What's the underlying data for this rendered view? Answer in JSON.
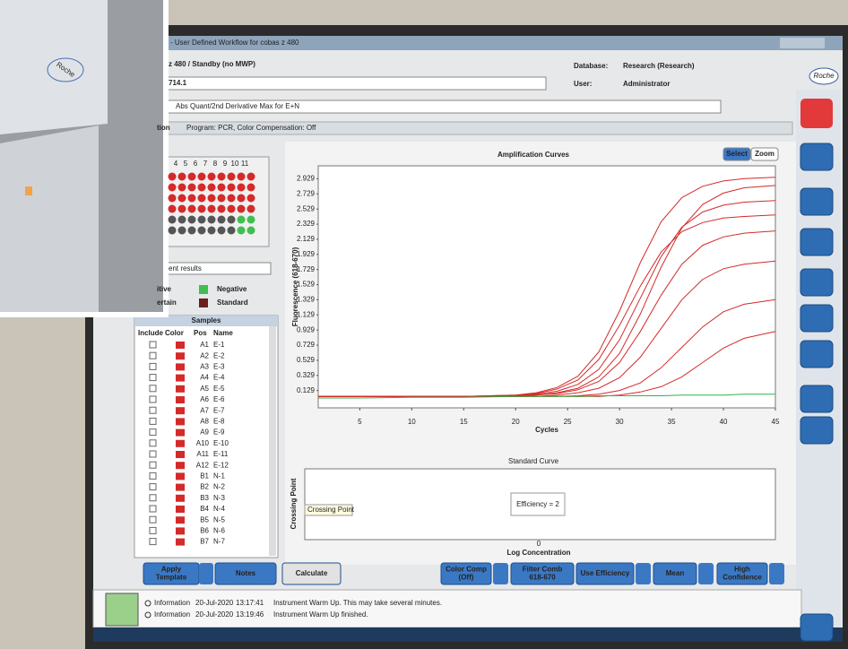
{
  "window": {
    "title": "- User Defined Workflow for cobas z 480",
    "status": "z 480 / Standby (no MWP)",
    "database_label": "Database:",
    "database": "Research (Research)",
    "user_label": "User:",
    "user": "Administrator",
    "run": "714.1",
    "analysis": "Abs Quant/2nd Derivative Max for E+N",
    "tab": "tion",
    "program": "Program: PCR, Color Compensation: Off"
  },
  "logo": "Roche",
  "device_logo": "Roche",
  "plate_columns": [
    "4",
    "5",
    "6",
    "7",
    "8",
    "9",
    "10",
    "11"
  ],
  "result_filter": "ent results",
  "legend_labels": [
    "itive",
    "Negative",
    "ertain",
    "Standard"
  ],
  "samples": {
    "title": "Samples",
    "headers": [
      "Include",
      "Color",
      "Pos",
      "Name"
    ],
    "rows": [
      [
        "A1",
        "E-1"
      ],
      [
        "A2",
        "E-2"
      ],
      [
        "A3",
        "E-3"
      ],
      [
        "A4",
        "E-4"
      ],
      [
        "A5",
        "E-5"
      ],
      [
        "A6",
        "E-6"
      ],
      [
        "A7",
        "E-7"
      ],
      [
        "A8",
        "E-8"
      ],
      [
        "A9",
        "E-9"
      ],
      [
        "A10",
        "E-10"
      ],
      [
        "A11",
        "E-11"
      ],
      [
        "A12",
        "E-12"
      ],
      [
        "B1",
        "N-1"
      ],
      [
        "B2",
        "N-2"
      ],
      [
        "B3",
        "N-3"
      ],
      [
        "B4",
        "N-4"
      ],
      [
        "B5",
        "N-5"
      ],
      [
        "B6",
        "N-6"
      ],
      [
        "B7",
        "N-7"
      ]
    ]
  },
  "left_buttons": [
    [
      "Apply",
      "Template"
    ],
    [
      "Notes"
    ],
    [
      "Calculate"
    ]
  ],
  "chart_controls": [
    "Select",
    "Zoom"
  ],
  "chart_data": {
    "type": "line",
    "title": "Amplification Curves",
    "x_label": "Cycles",
    "y_label": "Fluorescence (618-670)",
    "x": [
      1,
      5,
      10,
      15,
      20,
      22,
      24,
      26,
      28,
      30,
      32,
      34,
      36,
      38,
      40,
      42,
      45
    ],
    "xlim": [
      1,
      45
    ],
    "xticks": [
      5,
      10,
      15,
      20,
      25,
      30,
      35,
      40,
      45
    ],
    "ylim": [
      -0.1,
      3.1
    ],
    "yticks": [
      0.129,
      0.329,
      0.529,
      0.729,
      0.929,
      1.129,
      1.329,
      1.529,
      1.729,
      1.929,
      2.129,
      2.329,
      2.529,
      2.729,
      2.929
    ],
    "series": [
      {
        "color": "#d42a2a",
        "values": [
          0.05,
          0.05,
          0.05,
          0.05,
          0.07,
          0.1,
          0.17,
          0.32,
          0.64,
          1.18,
          1.82,
          2.36,
          2.68,
          2.83,
          2.9,
          2.93,
          2.95
        ]
      },
      {
        "color": "#d42a2a",
        "values": [
          0.05,
          0.05,
          0.05,
          0.05,
          0.06,
          0.08,
          0.12,
          0.21,
          0.41,
          0.8,
          1.35,
          1.9,
          2.29,
          2.49,
          2.58,
          2.62,
          2.64
        ]
      },
      {
        "color": "#d42a2a",
        "values": [
          0.05,
          0.05,
          0.05,
          0.05,
          0.05,
          0.07,
          0.09,
          0.14,
          0.25,
          0.5,
          0.91,
          1.39,
          1.8,
          2.05,
          2.16,
          2.21,
          2.24
        ]
      },
      {
        "color": "#d42a2a",
        "values": [
          0.05,
          0.05,
          0.05,
          0.05,
          0.05,
          0.05,
          0.07,
          0.1,
          0.16,
          0.3,
          0.57,
          0.95,
          1.33,
          1.6,
          1.74,
          1.8,
          1.84
        ]
      },
      {
        "color": "#d42a2a",
        "values": [
          0.05,
          0.05,
          0.05,
          0.05,
          0.05,
          0.07,
          0.1,
          0.16,
          0.31,
          0.62,
          1.14,
          1.76,
          2.28,
          2.59,
          2.74,
          2.81,
          2.84
        ]
      },
      {
        "color": "#d42a2a",
        "values": [
          0.05,
          0.05,
          0.05,
          0.05,
          0.05,
          0.05,
          0.05,
          0.06,
          0.08,
          0.13,
          0.23,
          0.43,
          0.7,
          0.97,
          1.17,
          1.27,
          1.33
        ]
      },
      {
        "color": "#d42a2a",
        "values": [
          0.05,
          0.05,
          0.05,
          0.05,
          0.05,
          0.05,
          0.05,
          0.05,
          0.05,
          0.07,
          0.11,
          0.18,
          0.31,
          0.5,
          0.69,
          0.82,
          0.91
        ]
      },
      {
        "color": "#d42a2a",
        "values": [
          0.05,
          0.05,
          0.05,
          0.05,
          0.07,
          0.09,
          0.15,
          0.27,
          0.54,
          0.99,
          1.51,
          1.96,
          2.23,
          2.35,
          2.41,
          2.43,
          2.45
        ]
      },
      {
        "color": "#2fb34a",
        "values": [
          0.03,
          0.03,
          0.04,
          0.04,
          0.05,
          0.05,
          0.05,
          0.05,
          0.06,
          0.06,
          0.06,
          0.06,
          0.07,
          0.07,
          0.07,
          0.08,
          0.08
        ]
      }
    ]
  },
  "standard_curve": {
    "title": "Standard Curve",
    "y_label": "Crossing Point",
    "tooltip": "Crossing Point",
    "annotation": "Efficiency = 2",
    "xticks": [
      0
    ],
    "x_label": "Log Concentration"
  },
  "toolbar": [
    [
      "Color Comp",
      "(Off)"
    ],
    [
      "Filter Comb",
      "618-670"
    ],
    [
      "Use Efficiency"
    ],
    [
      "Mean"
    ],
    [
      "High",
      "Confidence"
    ]
  ],
  "log": [
    [
      "Information",
      "20-Jul-2020",
      "13:17:41",
      "Instrument Warm Up. This may take several minutes."
    ],
    [
      "Information",
      "20-Jul-2020",
      "13:19:46",
      "Instrument Warm Up finished."
    ]
  ]
}
